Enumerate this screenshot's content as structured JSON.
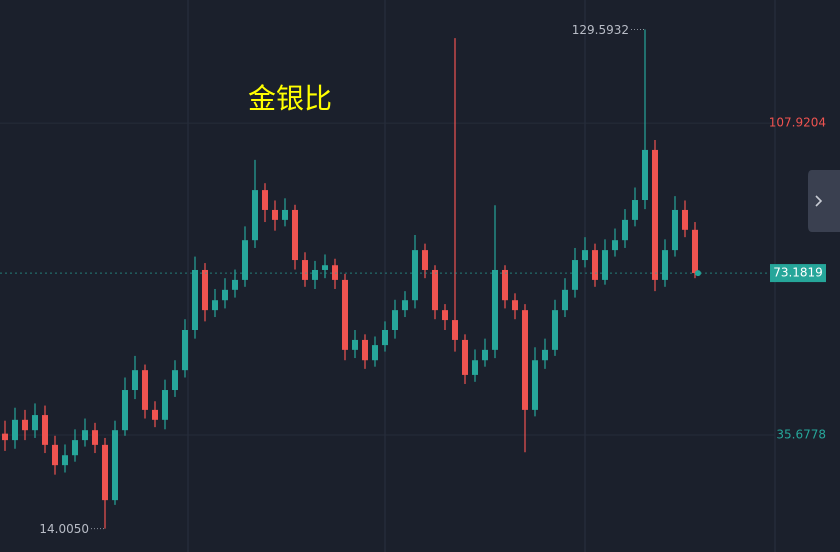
{
  "chart_data": {
    "type": "candlestick",
    "title": "金银比",
    "title_color": "#ffff00",
    "up_color": "#26a69a",
    "down_color": "#ef5350",
    "ylim": [
      8.59,
      136.42
    ],
    "yticks": [
      107.9204,
      35.6778
    ],
    "grid": true,
    "open": [
      36.0,
      34.5,
      39.2,
      36.8,
      40.3,
      33.4,
      28.7,
      31.0,
      34.5,
      36.8,
      33.4,
      20.6,
      36.8,
      46.1,
      50.7,
      41.5,
      39.2,
      46.1,
      50.7,
      60.0,
      73.9,
      64.6,
      66.9,
      69.3,
      71.6,
      80.8,
      92.4,
      87.8,
      85.5,
      87.8,
      76.2,
      71.6,
      73.9,
      75.0,
      71.6,
      55.4,
      57.7,
      53.0,
      56.5,
      60.0,
      64.6,
      66.9,
      78.5,
      73.9,
      64.6,
      62.3,
      57.7,
      49.6,
      53.0,
      55.4,
      73.9,
      66.9,
      64.6,
      41.5,
      53.0,
      55.4,
      64.6,
      69.3,
      76.2,
      78.5,
      71.6,
      78.5,
      80.8,
      85.5,
      90.1,
      101.7,
      71.6,
      78.5,
      87.8,
      83.2
    ],
    "high": [
      39.0,
      42.0,
      41.5,
      43.0,
      42.5,
      35.5,
      33.5,
      37.0,
      39.5,
      38.5,
      35.0,
      39.0,
      49.0,
      54.0,
      52.0,
      43.5,
      48.5,
      53.0,
      62.5,
      77.0,
      75.5,
      69.5,
      72.0,
      74.0,
      84.0,
      99.4,
      94.0,
      90.0,
      90.5,
      89.0,
      78.0,
      76.0,
      77.5,
      76.5,
      73.0,
      60.0,
      59.0,
      58.5,
      62.0,
      67.0,
      69.0,
      82.0,
      80.0,
      75.0,
      66.0,
      127.6,
      59.0,
      55.5,
      58.0,
      88.9,
      75.0,
      68.5,
      66.0,
      56.0,
      58.0,
      67.0,
      72.0,
      79.0,
      81.5,
      80.0,
      81.0,
      83.5,
      88.0,
      93.0,
      129.5932,
      104.0,
      81.0,
      91.0,
      90.0,
      85.0
    ],
    "low": [
      32.0,
      32.5,
      34.5,
      35.0,
      31.5,
      26.5,
      27.0,
      29.5,
      33.0,
      31.5,
      14.005,
      19.5,
      35.5,
      44.0,
      39.5,
      37.5,
      37.0,
      44.5,
      49.0,
      58.0,
      62.0,
      63.0,
      65.0,
      67.5,
      70.0,
      79.0,
      85.0,
      83.0,
      84.0,
      74.0,
      70.0,
      69.5,
      72.0,
      69.5,
      53.0,
      53.5,
      51.0,
      51.5,
      55.0,
      58.0,
      63.0,
      65.0,
      72.0,
      62.5,
      60.0,
      55.0,
      47.5,
      48.0,
      51.5,
      53.5,
      65.0,
      62.5,
      31.7,
      40.0,
      51.0,
      54.0,
      63.0,
      67.5,
      74.5,
      70.0,
      70.5,
      77.0,
      79.0,
      84.0,
      88.0,
      69.0,
      70.0,
      77.0,
      81.5,
      72.0
    ],
    "close": [
      34.5,
      39.2,
      36.8,
      40.3,
      33.4,
      28.7,
      31.0,
      34.5,
      36.8,
      33.4,
      20.6,
      36.8,
      46.1,
      50.7,
      41.5,
      39.2,
      46.1,
      50.7,
      60.0,
      73.9,
      64.6,
      66.9,
      69.3,
      71.6,
      80.8,
      92.4,
      87.8,
      85.5,
      87.8,
      76.2,
      71.6,
      73.9,
      75.0,
      71.6,
      55.4,
      57.7,
      53.0,
      56.5,
      60.0,
      64.6,
      66.9,
      78.5,
      73.9,
      64.6,
      62.3,
      57.7,
      49.6,
      53.0,
      55.4,
      73.9,
      66.9,
      64.6,
      41.5,
      53.0,
      55.4,
      64.6,
      69.3,
      76.2,
      78.5,
      71.6,
      78.5,
      80.8,
      85.5,
      90.1,
      101.7,
      71.6,
      78.5,
      87.8,
      83.2,
      73.1819
    ],
    "annotations": [
      {
        "value": 129.5932,
        "label": "129.5932"
      },
      {
        "value": 14.005,
        "label": "14.0050"
      }
    ]
  }
}
